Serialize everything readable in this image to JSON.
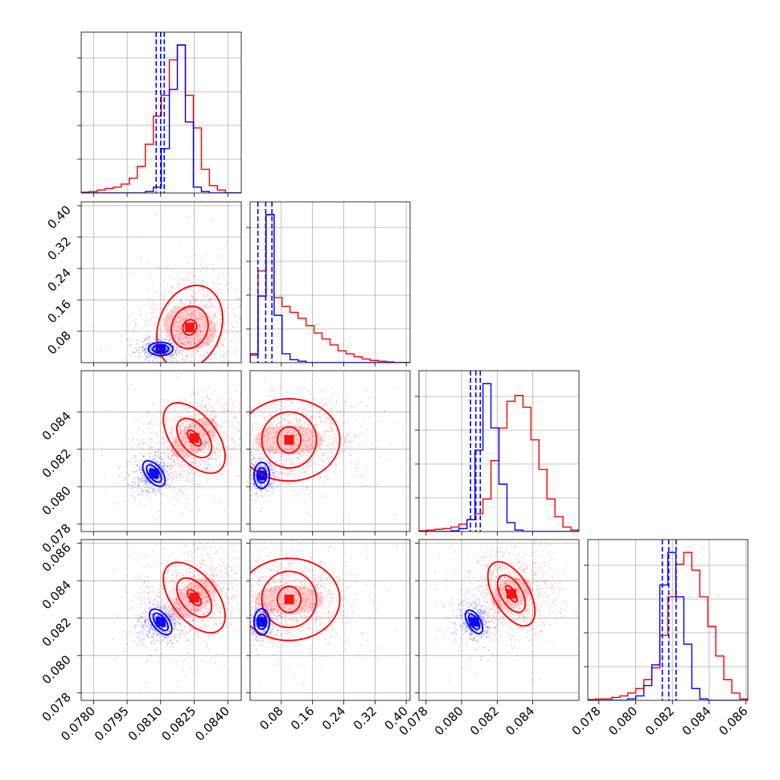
{
  "chart_data": {
    "type": "corner",
    "title": "",
    "grid": true,
    "colors": {
      "blue": "#0000ff",
      "red": "#ff0000"
    },
    "parameters": [
      {
        "xlim": [
          0.07745,
          0.0846
        ],
        "ylim": null,
        "x_ticks": [
          "0.0780",
          "0.0795",
          "0.0810",
          "0.0825",
          "0.0840"
        ],
        "x_tick_values": [
          0.078,
          0.0795,
          0.081,
          0.0825,
          0.084
        ]
      },
      {
        "xlim": [
          0.0,
          0.41
        ],
        "ylim": [
          0.0,
          0.41
        ],
        "x_ticks": [
          "0.08",
          "0.16",
          "0.24",
          "0.32",
          "0.40"
        ],
        "x_tick_values": [
          0.08,
          0.16,
          0.24,
          0.32,
          0.4
        ],
        "y_ticks": [
          "0.08",
          "0.16",
          "0.24",
          "0.32",
          "0.40"
        ],
        "y_tick_values": [
          0.08,
          0.16,
          0.24,
          0.32,
          0.4
        ]
      },
      {
        "xlim": [
          0.0776,
          0.0866
        ],
        "ylim": [
          0.0776,
          0.0862
        ],
        "x_ticks": [
          "0.078",
          "0.080",
          "0.082",
          "0.084"
        ],
        "x_tick_values": [
          0.078,
          0.08,
          0.082,
          0.084
        ],
        "y_ticks": [
          "0.078",
          "0.080",
          "0.082",
          "0.084"
        ],
        "y_tick_values": [
          0.078,
          0.08,
          0.082,
          0.084
        ]
      },
      {
        "xlim": [
          0.0774,
          0.0861
        ],
        "ylim": [
          0.0776,
          0.0862
        ],
        "x_ticks": [
          "0.078",
          "0.080",
          "0.082",
          "0.084",
          "0.086"
        ],
        "x_tick_values": [
          0.078,
          0.08,
          0.082,
          0.084,
          0.086
        ],
        "y_ticks": [
          "0.078",
          "0.080",
          "0.082",
          "0.084",
          "0.086"
        ],
        "y_tick_values": [
          0.078,
          0.08,
          0.082,
          0.084,
          0.086
        ]
      }
    ],
    "histograms": [
      {
        "param": 0,
        "bin_start": 0.07745,
        "bin_width": 0.000358,
        "blue": [
          0,
          0,
          0,
          0,
          0,
          0,
          0,
          0,
          0.01,
          0.04,
          0.3,
          0.7,
          1.0,
          0.48,
          0.04,
          0.01,
          0,
          0,
          0,
          0
        ],
        "red": [
          0.005,
          0.01,
          0.02,
          0.03,
          0.04,
          0.06,
          0.1,
          0.18,
          0.33,
          0.52,
          0.66,
          0.9,
          1.0,
          0.66,
          0.44,
          0.16,
          0.05,
          0.02,
          0,
          0
        ],
        "blue_quantiles": [
          0.0808,
          0.081,
          0.08116
        ]
      },
      {
        "param": 1,
        "bin_start": 0.0,
        "bin_width": 0.0205,
        "blue": [
          0.06,
          0.45,
          1.0,
          0.32,
          0.06,
          0.02,
          0.01,
          0,
          0,
          0,
          0,
          0,
          0,
          0,
          0,
          0,
          0,
          0,
          0,
          0
        ],
        "red": [
          0.05,
          0.62,
          1.0,
          0.44,
          0.38,
          0.34,
          0.3,
          0.25,
          0.2,
          0.16,
          0.12,
          0.08,
          0.06,
          0.04,
          0.025,
          0.015,
          0.01,
          0.005,
          0,
          0
        ],
        "blue_quantiles": [
          0.02,
          0.04,
          0.056
        ]
      },
      {
        "param": 2,
        "bin_start": 0.0776,
        "bin_width": 0.00045,
        "blue": [
          0,
          0,
          0,
          0,
          0.005,
          0.02,
          0.08,
          0.55,
          1.0,
          0.7,
          0.32,
          0.06,
          0.01,
          0,
          0,
          0,
          0,
          0,
          0,
          0
        ],
        "red": [
          0.005,
          0.01,
          0.015,
          0.02,
          0.03,
          0.05,
          0.08,
          0.12,
          0.22,
          0.48,
          0.7,
          0.88,
          0.92,
          0.84,
          0.62,
          0.42,
          0.22,
          0.1,
          0.03,
          0.01
        ],
        "blue_quantiles": [
          0.0805,
          0.0808,
          0.08105
        ]
      },
      {
        "param": 3,
        "bin_start": 0.0774,
        "bin_width": 0.000435,
        "blue": [
          0,
          0,
          0,
          0,
          0,
          0.01,
          0.03,
          0.1,
          0.24,
          0.78,
          1.0,
          0.7,
          0.38,
          0.08,
          0.01,
          0,
          0,
          0,
          0,
          0
        ],
        "red": [
          0.005,
          0.01,
          0.01,
          0.02,
          0.03,
          0.05,
          0.08,
          0.14,
          0.22,
          0.44,
          0.7,
          0.92,
          1.0,
          0.88,
          0.7,
          0.5,
          0.3,
          0.14,
          0.05,
          0.01
        ],
        "blue_quantiles": [
          0.08145,
          0.0818,
          0.0822
        ]
      }
    ],
    "scatter_panels": [
      {
        "x_param": 0,
        "y_param": 1,
        "blue": {
          "center": [
            0.081,
            0.035
          ],
          "spread": [
            0.00045,
            0.014
          ],
          "contours": [
            [
              0.0002,
              0.006
            ],
            [
              0.00035,
              0.011
            ],
            [
              0.00055,
              0.017
            ]
          ],
          "rotation": 0
        },
        "red": {
          "center": [
            0.0823,
            0.09
          ],
          "spread": [
            0.0011,
            0.075
          ],
          "contours": [
            [
              0.0003,
              0.02
            ],
            [
              0.0008,
              0.055
            ],
            [
              0.0014,
              0.11
            ]
          ],
          "rotation": -20
        }
      },
      {
        "x_param": 0,
        "y_param": 2,
        "blue": {
          "center": [
            0.0807,
            0.0807
          ],
          "spread": [
            0.0005,
            0.0005
          ],
          "contours": [
            [
              0.0001,
              0.0003
            ],
            [
              0.00022,
              0.00055
            ],
            [
              0.00036,
              0.0008
            ]
          ],
          "rotation": 38
        },
        "red": {
          "center": [
            0.0825,
            0.0826
          ],
          "spread": [
            0.0011,
            0.0011
          ],
          "contours": [
            [
              0.0002,
              0.0005
            ],
            [
              0.0006,
              0.0012
            ],
            [
              0.001,
              0.0022
            ]
          ],
          "rotation": 38
        }
      },
      {
        "x_param": 1,
        "y_param": 2,
        "blue": {
          "center": [
            0.03,
            0.0806
          ],
          "spread": [
            0.015,
            0.0004
          ],
          "contours": [
            [
              0.006,
              0.0002
            ],
            [
              0.012,
              0.0004
            ],
            [
              0.02,
              0.0007
            ]
          ],
          "rotation": 0
        },
        "red": {
          "center": [
            0.1,
            0.0825
          ],
          "spread": [
            0.08,
            0.0011
          ],
          "contours": [
            [
              0.03,
              0.0007
            ],
            [
              0.07,
              0.0015
            ],
            [
              0.13,
              0.0022
            ]
          ],
          "rotation": 0
        }
      },
      {
        "x_param": 0,
        "y_param": 3,
        "blue": {
          "center": [
            0.081,
            0.0818
          ],
          "spread": [
            0.0005,
            0.0005
          ],
          "contours": [
            [
              0.0001,
              0.0003
            ],
            [
              0.00022,
              0.00055
            ],
            [
              0.00036,
              0.0008
            ]
          ],
          "rotation": 38
        },
        "red": {
          "center": [
            0.0825,
            0.0831
          ],
          "spread": [
            0.0011,
            0.0011
          ],
          "contours": [
            [
              0.0002,
              0.0005
            ],
            [
              0.0006,
              0.0012
            ],
            [
              0.001,
              0.0022
            ]
          ],
          "rotation": 38
        }
      },
      {
        "x_param": 1,
        "y_param": 3,
        "blue": {
          "center": [
            0.03,
            0.0818
          ],
          "spread": [
            0.015,
            0.0004
          ],
          "contours": [
            [
              0.006,
              0.0002
            ],
            [
              0.012,
              0.0004
            ],
            [
              0.02,
              0.0007
            ]
          ],
          "rotation": 0
        },
        "red": {
          "center": [
            0.1,
            0.083
          ],
          "spread": [
            0.08,
            0.0011
          ],
          "contours": [
            [
              0.03,
              0.0007
            ],
            [
              0.07,
              0.0015
            ],
            [
              0.13,
              0.0022
            ]
          ],
          "rotation": 0
        }
      },
      {
        "x_param": 2,
        "y_param": 3,
        "blue": {
          "center": [
            0.0807,
            0.0818
          ],
          "spread": [
            0.0005,
            0.0005
          ],
          "contours": [
            [
              0.0001,
              0.0002
            ],
            [
              0.00022,
              0.00045
            ],
            [
              0.00036,
              0.0007
            ]
          ],
          "rotation": 30
        },
        "red": {
          "center": [
            0.0828,
            0.0833
          ],
          "spread": [
            0.0011,
            0.0011
          ],
          "contours": [
            [
              0.0002,
              0.0005
            ],
            [
              0.0006,
              0.0011
            ],
            [
              0.001,
              0.0019
            ]
          ],
          "rotation": 30
        }
      }
    ]
  }
}
